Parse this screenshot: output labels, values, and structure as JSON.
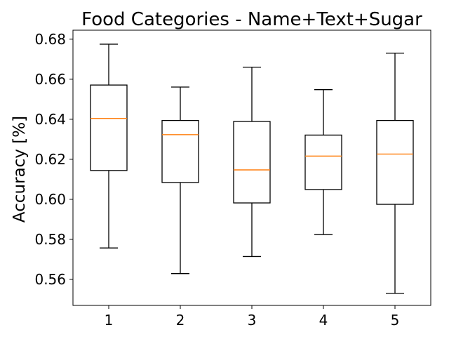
{
  "chart_data": {
    "type": "box",
    "title": "Food Categories - Name+Text+Sugar",
    "xlabel": "",
    "ylabel": "Accuracy [%]",
    "ylim": [
      0.547,
      0.6845
    ],
    "yticks": [
      0.56,
      0.58,
      0.6,
      0.62,
      0.64,
      0.66,
      0.68
    ],
    "ytick_labels": [
      "0.56",
      "0.58",
      "0.60",
      "0.62",
      "0.64",
      "0.66",
      "0.68"
    ],
    "categories": [
      "1",
      "2",
      "3",
      "4",
      "5"
    ],
    "boxes": [
      {
        "category": "1",
        "whisker_low": 0.5757,
        "q1": 0.6144,
        "median": 0.6404,
        "q3": 0.6571,
        "whisker_high": 0.6775
      },
      {
        "category": "2",
        "whisker_low": 0.5629,
        "q1": 0.6084,
        "median": 0.6323,
        "q3": 0.6394,
        "whisker_high": 0.6561
      },
      {
        "category": "3",
        "whisker_low": 0.5714,
        "q1": 0.5982,
        "median": 0.6147,
        "q3": 0.6389,
        "whisker_high": 0.666
      },
      {
        "category": "4",
        "whisker_low": 0.5824,
        "q1": 0.6049,
        "median": 0.6216,
        "q3": 0.6321,
        "whisker_high": 0.6548
      },
      {
        "category": "5",
        "whisker_low": 0.553,
        "q1": 0.5975,
        "median": 0.6226,
        "q3": 0.6394,
        "whisker_high": 0.673
      }
    ],
    "colors": {
      "box": "#000000",
      "median": "#ff7f0e",
      "axes": "#000000",
      "background": "#ffffff"
    },
    "grid": false,
    "legend": "none"
  }
}
